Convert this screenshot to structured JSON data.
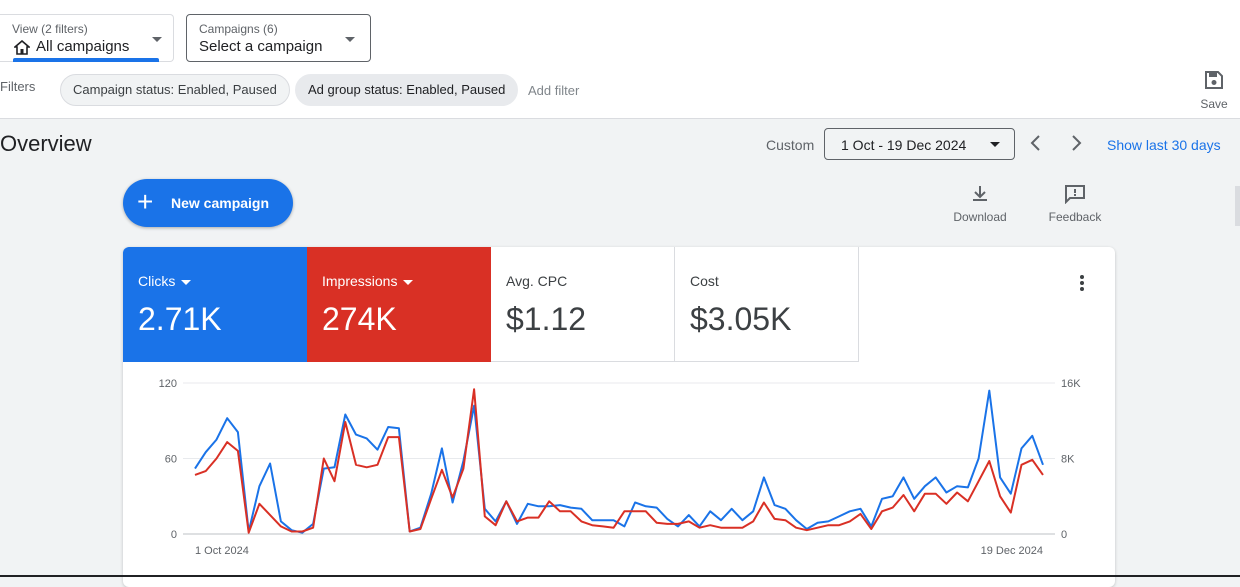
{
  "view_filter": {
    "label": "View (2 filters)",
    "value": "All campaigns"
  },
  "campaign_filter": {
    "label": "Campaigns (6)",
    "value": "Select a campaign"
  },
  "filters": {
    "label": "Filters",
    "chips": [
      "Campaign status: Enabled, Paused",
      "Ad group status: Enabled, Paused"
    ],
    "add_filter": "Add filter",
    "save_label": "Save"
  },
  "overview": {
    "title": "Overview",
    "custom_label": "Custom",
    "date_range": "1 Oct - 19 Dec 2024",
    "show_last": "Show last 30 days"
  },
  "actions": {
    "new_campaign": "New campaign",
    "download": "Download",
    "feedback": "Feedback"
  },
  "metrics": [
    {
      "label": "Clicks",
      "value": "2.71K",
      "color": "#1a73e8"
    },
    {
      "label": "Impressions",
      "value": "274K",
      "color": "#d93025"
    },
    {
      "label": "Avg. CPC",
      "value": "$1.12"
    },
    {
      "label": "Cost",
      "value": "$3.05K"
    }
  ],
  "chart_data": {
    "type": "line",
    "x_start_label": "1 Oct 2024",
    "x_end_label": "19 Dec 2024",
    "y_left_ticks": [
      "0",
      "60",
      "120"
    ],
    "y_right_ticks": [
      "0",
      "8K",
      "16K"
    ],
    "ylim_left": [
      0,
      120
    ],
    "ylim_right": [
      0,
      16000
    ],
    "grid": true,
    "series": [
      {
        "name": "Clicks",
        "color": "#1a73e8",
        "axis": "left",
        "values": [
          52,
          65,
          75,
          92,
          81,
          2,
          38,
          56,
          10,
          3,
          1,
          8,
          52,
          53,
          95,
          79,
          76,
          67,
          85,
          84,
          2,
          5,
          32,
          68,
          25,
          58,
          102,
          20,
          10,
          26,
          8,
          24,
          22,
          22,
          23,
          21,
          20,
          11,
          11,
          11,
          6,
          25,
          22,
          21,
          12,
          6,
          15,
          6,
          18,
          11,
          20,
          11,
          18,
          45,
          23,
          20,
          11,
          4,
          9,
          10,
          14,
          18,
          20,
          6,
          28,
          30,
          45,
          28,
          38,
          45,
          33,
          38,
          37,
          60,
          114,
          45,
          32,
          68,
          78,
          55
        ]
      },
      {
        "name": "Impressions",
        "color": "#d93025",
        "axis": "left",
        "values": [
          47,
          50,
          60,
          73,
          66,
          1,
          24,
          15,
          6,
          2,
          2,
          5,
          60,
          42,
          89,
          55,
          53,
          55,
          77,
          77,
          2,
          4,
          28,
          51,
          29,
          52,
          115,
          14,
          7,
          26,
          10,
          13,
          13,
          26,
          18,
          18,
          10,
          7,
          6,
          5,
          18,
          18,
          18,
          9,
          8,
          8,
          10,
          5,
          7,
          5,
          5,
          5,
          10,
          25,
          12,
          11,
          5,
          3,
          5,
          7,
          7,
          10,
          16,
          4,
          18,
          21,
          31,
          18,
          32,
          32,
          24,
          33,
          26,
          42,
          58,
          30,
          17,
          55,
          59,
          47
        ]
      }
    ]
  }
}
